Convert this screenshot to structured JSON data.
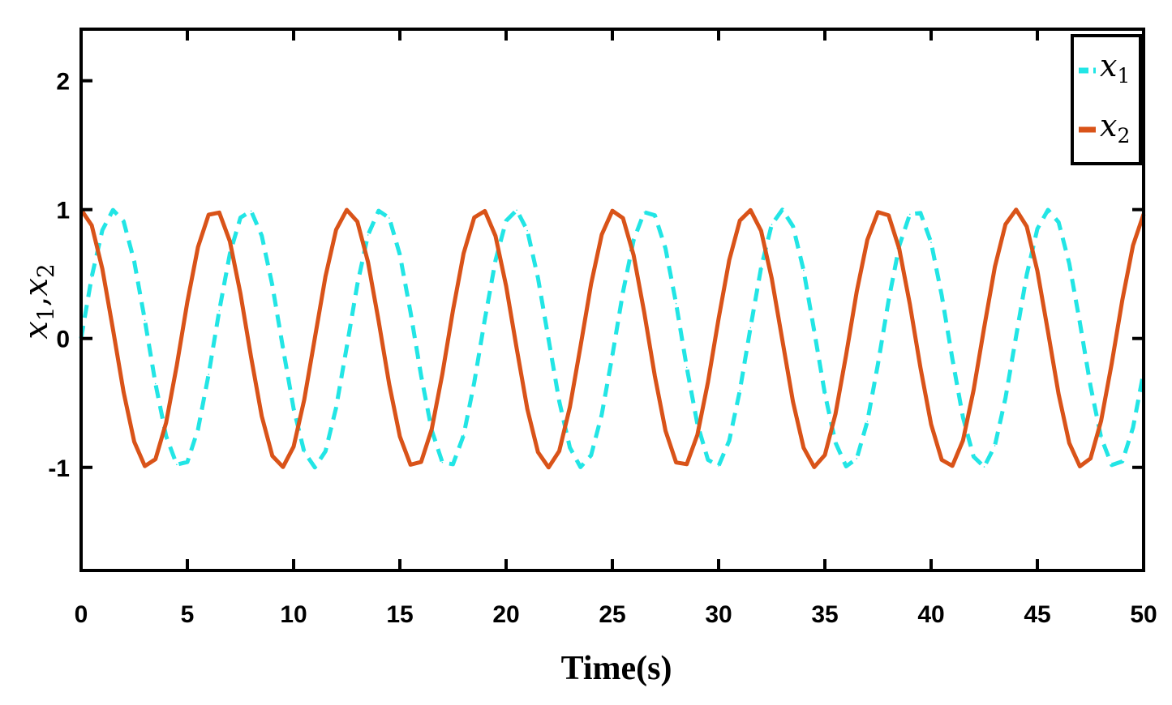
{
  "chart_data": {
    "type": "line",
    "title": "",
    "xlabel": "Time(s)",
    "ylabel": {
      "base": "x",
      "subs": [
        "1",
        "2"
      ],
      "separator": ","
    },
    "xlim": [
      0,
      50
    ],
    "ylim": [
      -1.8,
      2.4
    ],
    "xticks": [
      0,
      5,
      10,
      15,
      20,
      25,
      30,
      35,
      40,
      45,
      50
    ],
    "xtick_labels": [
      "0",
      "5",
      "10",
      "15",
      "20",
      "25",
      "30",
      "35",
      "40",
      "45",
      "50"
    ],
    "yticks": [
      -1,
      0,
      1,
      2
    ],
    "ytick_labels": [
      "-1",
      "0",
      "1",
      "2"
    ],
    "grid": false,
    "legend_position": "top-right",
    "series": [
      {
        "name": "x1",
        "legend_base": "x",
        "legend_sub": "1",
        "color": "#22E5E5",
        "style": "dashed",
        "x": [
          0,
          0.5,
          1,
          1.5,
          2,
          2.5,
          3,
          3.5,
          4,
          4.5,
          5,
          5.5,
          6,
          6.5,
          7,
          7.5,
          8,
          8.5,
          9,
          9.5,
          10,
          10.5,
          11,
          11.5,
          12,
          12.5,
          13,
          13.5,
          14,
          14.5,
          15,
          15.5,
          16,
          16.5,
          17,
          17.5,
          18,
          18.5,
          19,
          19.5,
          20,
          20.5,
          21,
          21.5,
          22,
          22.5,
          23,
          23.5,
          24,
          24.5,
          25,
          25.5,
          26,
          26.5,
          27,
          27.5,
          28,
          28.5,
          29,
          29.5,
          30,
          30.5,
          31,
          31.5,
          32,
          32.5,
          33,
          33.5,
          34,
          34.5,
          35,
          35.5,
          36,
          36.5,
          37,
          37.5,
          38,
          38.5,
          39,
          39.5,
          40,
          40.5,
          41,
          41.5,
          42,
          42.5,
          43,
          43.5,
          44,
          44.5,
          45,
          45.5,
          46,
          46.5,
          47,
          47.5,
          48,
          48.5,
          49,
          49.5,
          50
        ],
        "y": [
          0.0,
          0.479,
          0.841,
          0.997,
          0.909,
          0.598,
          0.141,
          -0.351,
          -0.757,
          -0.978,
          -0.959,
          -0.706,
          -0.279,
          0.215,
          0.657,
          0.938,
          0.989,
          0.798,
          0.412,
          -0.075,
          -0.544,
          -0.88,
          -1.0,
          -0.875,
          -0.537,
          -0.066,
          0.42,
          0.803,
          0.991,
          0.935,
          0.65,
          0.206,
          -0.288,
          -0.712,
          -0.961,
          -0.976,
          -0.751,
          -0.342,
          0.15,
          0.605,
          0.913,
          0.996,
          0.837,
          0.47,
          -0.009,
          -0.487,
          -0.846,
          -0.998,
          -0.906,
          -0.59,
          -0.132,
          0.36,
          0.763,
          0.98,
          0.956,
          0.699,
          0.271,
          -0.224,
          -0.663,
          -0.941,
          -0.988,
          -0.793,
          -0.404,
          0.084,
          0.551,
          0.884,
          1.0,
          0.871,
          0.529,
          0.057,
          -0.428,
          -0.808,
          -0.992,
          -0.932,
          -0.643,
          -0.197,
          0.296,
          0.718,
          0.964,
          0.974,
          0.745,
          0.334,
          -0.158,
          -0.612,
          -0.917,
          -0.996,
          -0.832,
          -0.462,
          0.018,
          0.495,
          0.851,
          0.998,
          0.902,
          0.582,
          0.124,
          -0.368,
          -0.768,
          -0.982,
          -0.954,
          -0.692,
          -0.262
        ]
      },
      {
        "name": "x2",
        "legend_base": "x",
        "legend_sub": "2",
        "color": "#D95319",
        "style": "solid",
        "x": [
          0,
          0.5,
          1,
          1.5,
          2,
          2.5,
          3,
          3.5,
          4,
          4.5,
          5,
          5.5,
          6,
          6.5,
          7,
          7.5,
          8,
          8.5,
          9,
          9.5,
          10,
          10.5,
          11,
          11.5,
          12,
          12.5,
          13,
          13.5,
          14,
          14.5,
          15,
          15.5,
          16,
          16.5,
          17,
          17.5,
          18,
          18.5,
          19,
          19.5,
          20,
          20.5,
          21,
          21.5,
          22,
          22.5,
          23,
          23.5,
          24,
          24.5,
          25,
          25.5,
          26,
          26.5,
          27,
          27.5,
          28,
          28.5,
          29,
          29.5,
          30,
          30.5,
          31,
          31.5,
          32,
          32.5,
          33,
          33.5,
          34,
          34.5,
          35,
          35.5,
          36,
          36.5,
          37,
          37.5,
          38,
          38.5,
          39,
          39.5,
          40,
          40.5,
          41,
          41.5,
          42,
          42.5,
          43,
          43.5,
          44,
          44.5,
          45,
          45.5,
          46,
          46.5,
          47,
          47.5,
          48,
          48.5,
          49,
          49.5,
          50
        ],
        "y": [
          1.0,
          0.878,
          0.54,
          0.071,
          -0.416,
          -0.801,
          -0.99,
          -0.936,
          -0.654,
          -0.211,
          0.284,
          0.709,
          0.96,
          0.977,
          0.754,
          0.347,
          -0.146,
          -0.602,
          -0.911,
          -0.997,
          -0.839,
          -0.475,
          0.004,
          0.482,
          0.844,
          0.998,
          0.907,
          0.594,
          0.137,
          -0.356,
          -0.76,
          -0.979,
          -0.958,
          -0.703,
          -0.275,
          0.219,
          0.66,
          0.939,
          0.989,
          0.796,
          0.408,
          -0.079,
          -0.548,
          -0.882,
          -1.0,
          -0.873,
          -0.533,
          -0.062,
          0.424,
          0.806,
          0.991,
          0.934,
          0.647,
          0.202,
          -0.292,
          -0.715,
          -0.962,
          -0.975,
          -0.748,
          -0.338,
          0.154,
          0.608,
          0.915,
          0.996,
          0.835,
          0.466,
          -0.013,
          -0.491,
          -0.848,
          -0.998,
          -0.904,
          -0.586,
          -0.128,
          0.364,
          0.766,
          0.981,
          0.955,
          0.696,
          0.266,
          -0.228,
          -0.666,
          -0.942,
          -0.988,
          -0.791,
          -0.4,
          0.088,
          0.555,
          0.886,
          1.0,
          0.869,
          0.525,
          0.053,
          -0.432,
          -0.811,
          -0.992,
          -0.931,
          -0.639,
          -0.193,
          0.3,
          0.721,
          0.965
        ]
      }
    ]
  }
}
